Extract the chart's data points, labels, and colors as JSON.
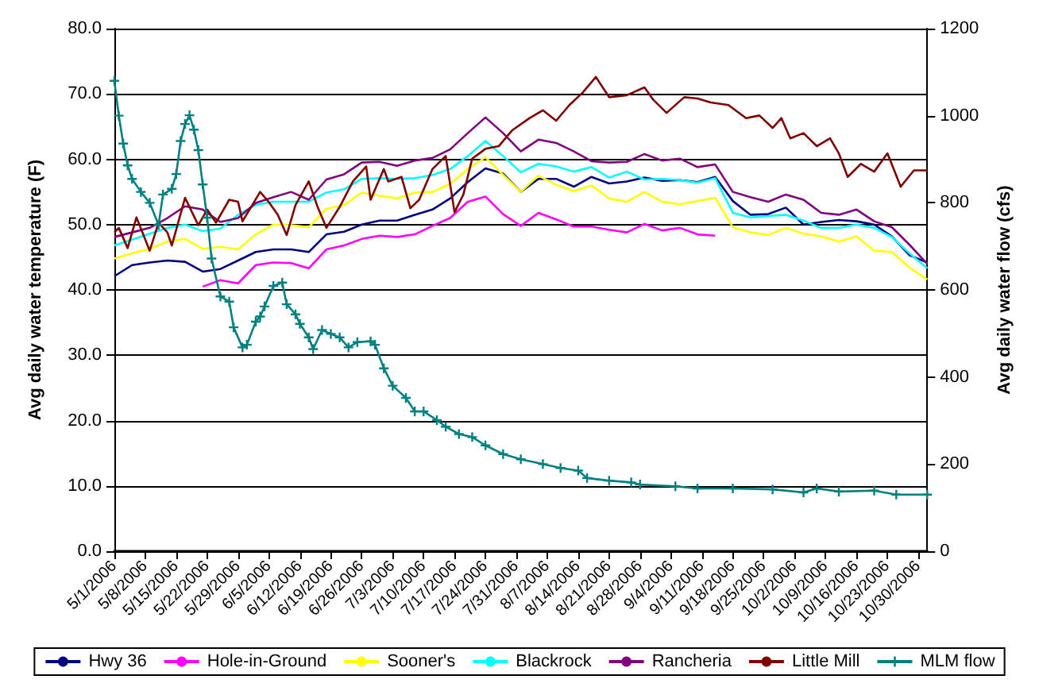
{
  "chart_data": {
    "type": "line",
    "ylabel": "Avg daily water temperature (F)",
    "y2label": "Avg daily water flow (cfs)",
    "x": [
      "2006-05-01",
      "2006-05-05",
      "2006-05-09",
      "2006-05-13",
      "2006-05-17",
      "2006-05-21",
      "2006-05-25",
      "2006-05-29",
      "2006-06-02",
      "2006-06-06",
      "2006-06-10",
      "2006-06-14",
      "2006-06-18",
      "2006-06-22",
      "2006-06-26",
      "2006-06-30",
      "2006-07-04",
      "2006-07-08",
      "2006-07-12",
      "2006-07-16",
      "2006-07-20",
      "2006-07-24",
      "2006-07-28",
      "2006-08-01",
      "2006-08-05",
      "2006-08-09",
      "2006-08-13",
      "2006-08-17",
      "2006-08-21",
      "2006-08-25",
      "2006-08-29",
      "2006-09-02",
      "2006-09-06",
      "2006-09-10",
      "2006-09-14",
      "2006-09-18",
      "2006-09-22",
      "2006-09-26",
      "2006-09-30",
      "2006-10-04",
      "2006-10-08",
      "2006-10-12",
      "2006-10-16",
      "2006-10-20",
      "2006-10-24",
      "2006-10-28",
      "2006-11-01"
    ],
    "series": [
      {
        "name": "Hwy 36",
        "color": "#000080",
        "values": [
          42.1,
          43.8,
          44.2,
          44.5,
          44.3,
          42.8,
          43.2,
          44.5,
          45.8,
          46.2,
          46.2,
          45.8,
          48.5,
          48.9,
          50,
          50.6,
          50.6,
          51.5,
          52.3,
          54,
          56.5,
          58.6,
          57.8,
          55,
          57,
          57,
          55.8,
          57.3,
          56.3,
          56.6,
          57.2,
          56.7,
          56.8,
          56.5,
          57.3,
          53.6,
          51.5,
          51.6,
          52.6,
          50,
          50.4,
          50.7,
          50.5,
          50,
          48.2,
          45.3,
          44.2
        ]
      },
      {
        "name": "Hole-in-Ground",
        "color": "#ff00ff",
        "values": [
          null,
          null,
          null,
          null,
          null,
          40.5,
          41.5,
          41,
          43.8,
          44.2,
          44.1,
          43.3,
          46.2,
          46.8,
          47.8,
          48.3,
          48.1,
          48.5,
          49.8,
          51,
          53.5,
          54.3,
          51.6,
          49.8,
          51.8,
          50.8,
          49.7,
          49.7,
          49.2,
          48.8,
          50.1,
          49.1,
          49.5,
          48.5,
          48.3,
          null,
          null,
          null,
          null,
          null,
          null,
          null,
          null,
          null,
          null,
          null,
          null
        ]
      },
      {
        "name": "Sooner's",
        "color": "#ffff00",
        "values": [
          44.8,
          45.6,
          46.3,
          47.4,
          47.8,
          46.3,
          46.6,
          46.2,
          48.5,
          50,
          49.9,
          49.6,
          52.4,
          53,
          54.9,
          54.4,
          54,
          54.9,
          55,
          56.2,
          58.5,
          60.3,
          57.6,
          55,
          57.5,
          56.1,
          55.1,
          56,
          54,
          53.5,
          55,
          53.5,
          53.1,
          53.6,
          54.1,
          49.6,
          48.8,
          48.4,
          49.5,
          48.6,
          48.2,
          47.4,
          48.2,
          46,
          45.8,
          43.4,
          41.6
        ]
      },
      {
        "name": "Blackrock",
        "color": "#00ffff",
        "values": [
          46.8,
          47.7,
          48.6,
          49.5,
          50,
          49,
          49.4,
          51.5,
          53,
          53.5,
          53.5,
          53.5,
          54.9,
          55.4,
          57,
          57.1,
          57,
          57.1,
          57.6,
          58.5,
          60.5,
          62.8,
          60.5,
          58,
          59.3,
          58.9,
          58.1,
          58.8,
          57.2,
          58.1,
          56.9,
          57,
          56.8,
          56.4,
          57.1,
          51.8,
          51.1,
          51.3,
          51.5,
          50.6,
          49.5,
          49.5,
          50,
          49.5,
          48.1,
          45.6,
          43.3
        ]
      },
      {
        "name": "Rancheria",
        "color": "#800080",
        "values": [
          48.1,
          48.8,
          49.5,
          51,
          52.8,
          52.3,
          50.4,
          51,
          53.3,
          54.2,
          55,
          53.8,
          56.9,
          57.7,
          59.5,
          59.6,
          59,
          59.8,
          60.2,
          61.5,
          64,
          66.4,
          64,
          61.2,
          63,
          62.5,
          61.2,
          59.7,
          59.5,
          59.6,
          60.8,
          59.8,
          60.1,
          58.8,
          59.2,
          55,
          54.2,
          53.5,
          54.6,
          53.8,
          51.8,
          51.5,
          52.3,
          50.5,
          49.6,
          46.9,
          44
        ]
      },
      {
        "name": "Little Mill",
        "color": "#800000",
        "x": [
          "2006-05-01",
          "2006-05-02",
          "2006-05-04",
          "2006-05-06",
          "2006-05-09",
          "2006-05-11",
          "2006-05-13",
          "2006-05-14",
          "2006-05-17",
          "2006-05-20",
          "2006-05-22",
          "2006-05-24",
          "2006-05-27",
          "2006-05-29",
          "2006-05-30",
          "2006-06-03",
          "2006-06-05",
          "2006-06-07",
          "2006-06-09",
          "2006-06-11",
          "2006-06-14",
          "2006-06-16",
          "2006-06-18",
          "2006-06-21",
          "2006-06-24",
          "2006-06-27",
          "2006-06-28",
          "2006-07-01",
          "2006-07-02",
          "2006-07-05",
          "2006-07-07",
          "2006-07-09",
          "2006-07-12",
          "2006-07-15",
          "2006-07-17",
          "2006-07-19",
          "2006-07-21",
          "2006-07-24",
          "2006-07-27",
          "2006-07-30",
          "2006-08-03",
          "2006-08-06",
          "2006-08-09",
          "2006-08-12",
          "2006-08-15",
          "2006-08-18",
          "2006-08-21",
          "2006-08-25",
          "2006-08-29",
          "2006-08-31",
          "2006-09-03",
          "2006-09-07",
          "2006-09-10",
          "2006-09-13",
          "2006-09-17",
          "2006-09-21",
          "2006-09-24",
          "2006-09-27",
          "2006-09-29",
          "2006-10-01",
          "2006-10-04",
          "2006-10-07",
          "2006-10-10",
          "2006-10-12",
          "2006-10-14",
          "2006-10-17",
          "2006-10-20",
          "2006-10-23",
          "2006-10-26",
          "2006-10-29",
          "2006-11-01"
        ],
        "values": [
          48.8,
          49.5,
          46.4,
          51.1,
          46,
          50.3,
          48.8,
          46.8,
          54.1,
          49.9,
          52.3,
          50.3,
          53.8,
          53.5,
          50.5,
          55,
          53.4,
          51.5,
          48.4,
          53,
          56.6,
          52.7,
          49.5,
          52.7,
          56.6,
          58.9,
          53.8,
          58.5,
          56.6,
          57.3,
          52.5,
          53.8,
          58.5,
          60.5,
          51.9,
          54.6,
          60.1,
          61.6,
          62,
          64.4,
          66.3,
          67.5,
          65.9,
          68.3,
          70.2,
          72.6,
          69.5,
          69.8,
          71,
          69.1,
          67.1,
          69.5,
          69.3,
          68.7,
          68.3,
          66.3,
          66.7,
          64.8,
          66.3,
          63.2,
          64,
          62,
          63.2,
          60.9,
          57.3,
          59.3,
          58.1,
          60.9,
          55.8,
          58.3,
          58.3
        ]
      },
      {
        "name": "MLM flow",
        "color": "#008080",
        "axis": "y2",
        "marker": "cross",
        "x": [
          "2006-05-01",
          "2006-05-02",
          "2006-05-03",
          "2006-05-04",
          "2006-05-05",
          "2006-05-07",
          "2006-05-09",
          "2006-05-11",
          "2006-05-12",
          "2006-05-14",
          "2006-05-15",
          "2006-05-16",
          "2006-05-17",
          "2006-05-18",
          "2006-05-19",
          "2006-05-20",
          "2006-05-21",
          "2006-05-22",
          "2006-05-23",
          "2006-05-25",
          "2006-05-27",
          "2006-05-28",
          "2006-05-30",
          "2006-05-31",
          "2006-06-02",
          "2006-06-03",
          "2006-06-04",
          "2006-06-06",
          "2006-06-08",
          "2006-06-09",
          "2006-06-11",
          "2006-06-12",
          "2006-06-14",
          "2006-06-15",
          "2006-06-17",
          "2006-06-19",
          "2006-06-21",
          "2006-06-23",
          "2006-06-25",
          "2006-06-28",
          "2006-06-29",
          "2006-07-01",
          "2006-07-03",
          "2006-07-06",
          "2006-07-08",
          "2006-07-10",
          "2006-07-13",
          "2006-07-15",
          "2006-07-18",
          "2006-07-21",
          "2006-07-24",
          "2006-07-28",
          "2006-08-01",
          "2006-08-06",
          "2006-08-10",
          "2006-08-14",
          "2006-08-16",
          "2006-08-21",
          "2006-08-26",
          "2006-08-28",
          "2006-09-05",
          "2006-09-10",
          "2006-09-18",
          "2006-09-27",
          "2006-10-04",
          "2006-10-07",
          "2006-10-12",
          "2006-10-20",
          "2006-10-25",
          "2006-11-01"
        ],
        "values": [
          1080,
          1000,
          936,
          886,
          855,
          825,
          800,
          749,
          819,
          832,
          866,
          942,
          981,
          1001,
          968,
          921,
          842,
          766,
          672,
          585,
          573,
          514,
          468,
          474,
          527,
          539,
          562,
          609,
          617,
          567,
          544,
          522,
          491,
          464,
          508,
          499,
          491,
          468,
          480,
          482,
          474,
          420,
          380,
          352,
          321,
          321,
          301,
          286,
          269,
          262,
          243,
          223,
          211,
          200,
          191,
          185,
          168,
          162,
          158,
          153,
          149,
          144,
          144,
          142,
          135,
          144,
          137,
          139,
          130,
          130
        ]
      }
    ],
    "xlim": [
      "2006-05-01",
      "2006-11-01"
    ],
    "xticks": [
      {
        "value": "2006-05-01",
        "label": "5/1/2006"
      },
      {
        "value": "2006-05-08",
        "label": "5/8/2006"
      },
      {
        "value": "2006-05-15",
        "label": "5/15/2006"
      },
      {
        "value": "2006-05-22",
        "label": "5/22/2006"
      },
      {
        "value": "2006-05-29",
        "label": "5/29/2006"
      },
      {
        "value": "2006-06-05",
        "label": "6/5/2006"
      },
      {
        "value": "2006-06-12",
        "label": "6/12/2006"
      },
      {
        "value": "2006-06-19",
        "label": "6/19/2006"
      },
      {
        "value": "2006-06-26",
        "label": "6/26/2006"
      },
      {
        "value": "2006-07-03",
        "label": "7/3/2006"
      },
      {
        "value": "2006-07-10",
        "label": "7/10/2006"
      },
      {
        "value": "2006-07-17",
        "label": "7/17/2006"
      },
      {
        "value": "2006-07-24",
        "label": "7/24/2006"
      },
      {
        "value": "2006-07-31",
        "label": "7/31/2006"
      },
      {
        "value": "2006-08-07",
        "label": "8/7/2006"
      },
      {
        "value": "2006-08-14",
        "label": "8/14/2006"
      },
      {
        "value": "2006-08-21",
        "label": "8/21/2006"
      },
      {
        "value": "2006-08-28",
        "label": "8/28/2006"
      },
      {
        "value": "2006-09-04",
        "label": "9/4/2006"
      },
      {
        "value": "2006-09-11",
        "label": "9/11/2006"
      },
      {
        "value": "2006-09-18",
        "label": "9/18/2006"
      },
      {
        "value": "2006-09-25",
        "label": "9/25/2006"
      },
      {
        "value": "2006-10-02",
        "label": "10/2/2006"
      },
      {
        "value": "2006-10-09",
        "label": "10/9/2006"
      },
      {
        "value": "2006-10-16",
        "label": "10/16/2006"
      },
      {
        "value": "2006-10-23",
        "label": "10/23/2006"
      },
      {
        "value": "2006-10-30",
        "label": "10/30/2006"
      }
    ],
    "ylim": [
      0,
      80
    ],
    "yticks": [
      {
        "value": 0,
        "label": "0.0"
      },
      {
        "value": 10,
        "label": "10.0"
      },
      {
        "value": 20,
        "label": "20.0"
      },
      {
        "value": 30,
        "label": "30.0"
      },
      {
        "value": 40,
        "label": "40.0"
      },
      {
        "value": 50,
        "label": "50.0"
      },
      {
        "value": 60,
        "label": "60.0"
      },
      {
        "value": 70,
        "label": "70.0"
      },
      {
        "value": 80,
        "label": "80.0"
      }
    ],
    "y2lim": [
      0,
      1200
    ],
    "y2ticks": [
      0,
      200,
      400,
      600,
      800,
      1000,
      1200
    ],
    "grid": "y",
    "legend": "bottom",
    "marker": "none",
    "line_style": "solid"
  }
}
